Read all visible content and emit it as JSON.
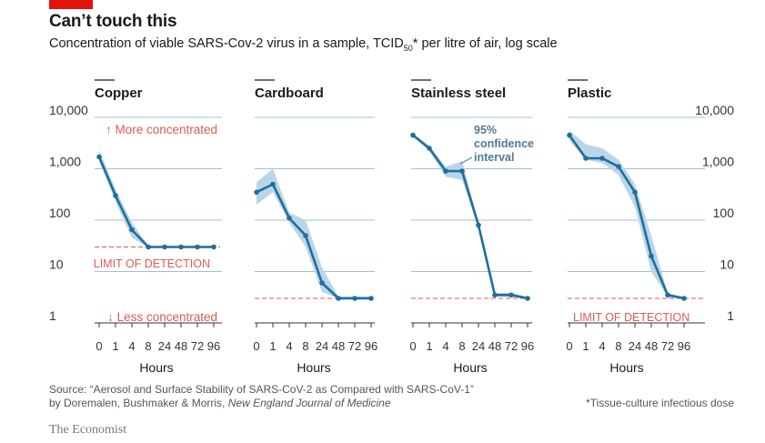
{
  "header": {
    "title": "Can’t touch this",
    "subtitle_pre": "Concentration of viable SARS-Cov-2 virus in a sample, TCID",
    "subtitle_sub": "50",
    "subtitle_post": "* per litre of air, log scale"
  },
  "footer": {
    "source_line1": "Source: “Aerosol and Surface Stability of SARS-CoV-2 as Compared with SARS-CoV-1”",
    "source_line2_pre": "by Doremalen, Bushmaker & Morris, ",
    "source_journal": "New England Journal of Medicine",
    "footnote": "*Tissue-culture infectious dose",
    "brand": "The Economist"
  },
  "colors": {
    "line": "#1f6e9c",
    "band": "#b9d6e8",
    "grid": "#9fc1d6",
    "detection": "#e05a4f",
    "label_blue": "#4f7a96",
    "red_tag": "#e3120b"
  },
  "chart_data": {
    "type": "line",
    "y_scale": "log",
    "ylim": [
      1,
      10000
    ],
    "y_ticks": [
      1,
      10,
      100,
      1000,
      10000
    ],
    "y_tick_labels": [
      "1",
      "10",
      "100",
      "1,000",
      "10,000"
    ],
    "x_categories": [
      "0",
      "1",
      "4",
      "8",
      "24",
      "48",
      "72",
      "96"
    ],
    "xlabel": "Hours",
    "grid": "horizontal",
    "annotations": {
      "more_concentrated": "↑ More concentrated",
      "less_concentrated": "↓ Less concentrated",
      "limit_of_detection": "LIMIT OF DETECTION",
      "confidence_interval": [
        "95%",
        "confidence",
        "interval"
      ]
    },
    "panels": [
      {
        "name": "Copper",
        "values": [
          1700,
          300,
          65,
          30,
          30,
          30,
          30,
          30
        ],
        "lower": [
          1400,
          230,
          45,
          30,
          30,
          30,
          30,
          30
        ],
        "upper": [
          2300,
          400,
          90,
          32,
          30,
          30,
          30,
          30
        ],
        "detection_limit": 30
      },
      {
        "name": "Cardboard",
        "values": [
          350,
          500,
          110,
          50,
          6,
          3,
          3,
          3
        ],
        "lower": [
          200,
          350,
          90,
          30,
          4,
          3,
          3,
          3
        ],
        "upper": [
          550,
          1000,
          140,
          100,
          12,
          3.3,
          3.3,
          3.3
        ],
        "detection_limit": 3
      },
      {
        "name": "Stainless steel",
        "values": [
          4500,
          2500,
          900,
          900,
          80,
          3.5,
          3.5,
          3
        ],
        "lower": [
          4200,
          2200,
          700,
          600,
          70,
          3.3,
          3.2,
          3
        ],
        "upper": [
          4800,
          2800,
          1100,
          1400,
          90,
          3.8,
          3.9,
          3.2
        ],
        "detection_limit": 3
      },
      {
        "name": "Plastic",
        "values": [
          4500,
          1600,
          1600,
          1100,
          350,
          20,
          3.5,
          3
        ],
        "lower": [
          3500,
          1500,
          1300,
          750,
          180,
          10,
          3.2,
          3
        ],
        "upper": [
          5500,
          3000,
          2500,
          1500,
          500,
          50,
          3.8,
          3.2
        ],
        "detection_limit": 3
      }
    ]
  }
}
